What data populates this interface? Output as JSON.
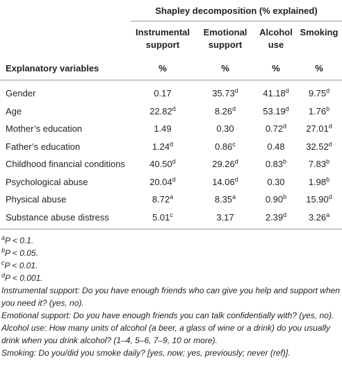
{
  "header": {
    "group_title": "Shapley decomposition (% explained)",
    "col_label_title": "Explanatory variables",
    "columns": [
      {
        "line1": "Instrumental",
        "line2": "support",
        "unit": "%"
      },
      {
        "line1": "Emotional",
        "line2": "support",
        "unit": "%"
      },
      {
        "line1": "Alcohol",
        "line2": "use",
        "unit": "%"
      },
      {
        "line1": "Smoking",
        "line2": "",
        "unit": "%"
      }
    ]
  },
  "rows": [
    {
      "label": "Gender",
      "cells": [
        {
          "v": "0.17",
          "s": ""
        },
        {
          "v": "35.73",
          "s": "d"
        },
        {
          "v": "41.18",
          "s": "d"
        },
        {
          "v": "9.75",
          "s": "d"
        }
      ]
    },
    {
      "label": "Age",
      "cells": [
        {
          "v": "22.82",
          "s": "d"
        },
        {
          "v": "8.26",
          "s": "d"
        },
        {
          "v": "53.19",
          "s": "d"
        },
        {
          "v": "1.76",
          "s": "b"
        }
      ]
    },
    {
      "label": "Mother’s education",
      "cells": [
        {
          "v": "1.49",
          "s": ""
        },
        {
          "v": "0.30",
          "s": ""
        },
        {
          "v": "0.72",
          "s": "d"
        },
        {
          "v": "27.01",
          "s": "d"
        }
      ]
    },
    {
      "label": "Father’s education",
      "cells": [
        {
          "v": "1.24",
          "s": "d"
        },
        {
          "v": "0.86",
          "s": "c"
        },
        {
          "v": "0.48",
          "s": ""
        },
        {
          "v": "32.52",
          "s": "d"
        }
      ]
    },
    {
      "label": "Childhood financial conditions",
      "cells": [
        {
          "v": "40.50",
          "s": "d"
        },
        {
          "v": "29.26",
          "s": "d"
        },
        {
          "v": "0.83",
          "s": "b"
        },
        {
          "v": "7.83",
          "s": "b"
        }
      ]
    },
    {
      "label": "Psychological abuse",
      "cells": [
        {
          "v": "20.04",
          "s": "d"
        },
        {
          "v": "14.06",
          "s": "d"
        },
        {
          "v": "0.30",
          "s": ""
        },
        {
          "v": "1.98",
          "s": "b"
        }
      ]
    },
    {
      "label": "Physical abuse",
      "cells": [
        {
          "v": "8.72",
          "s": "a"
        },
        {
          "v": "8.35",
          "s": "a"
        },
        {
          "v": "0.90",
          "s": "b"
        },
        {
          "v": "15.90",
          "s": "d"
        }
      ]
    },
    {
      "label": "Substance abuse distress",
      "cells": [
        {
          "v": "5.01",
          "s": "c"
        },
        {
          "v": "3.17",
          "s": ""
        },
        {
          "v": "2.39",
          "s": "d"
        },
        {
          "v": "3.26",
          "s": "a"
        }
      ]
    }
  ],
  "notes": {
    "sig": [
      {
        "sup": "a",
        "text": "P < 0.1."
      },
      {
        "sup": "b",
        "text": "P < 0.05."
      },
      {
        "sup": "c",
        "text": "P < 0.01."
      },
      {
        "sup": "d",
        "text": "P < 0.001."
      }
    ],
    "questions": [
      "Instrumental support: Do you have enough friends who can give you help and support when you need it? (yes, no).",
      "Emotional support: Do you have enough friends you can talk confidentially with? (yes, no).",
      "Alcohol use: How many units of alcohol (a beer, a glass of wine or a drink) do you usually drink when you drink alcohol? (1–4, 5–6, 7–9, 10 or more).",
      "Smoking: Do you/did you smoke daily? [yes, now; yes, previously; never (ref)]."
    ]
  }
}
